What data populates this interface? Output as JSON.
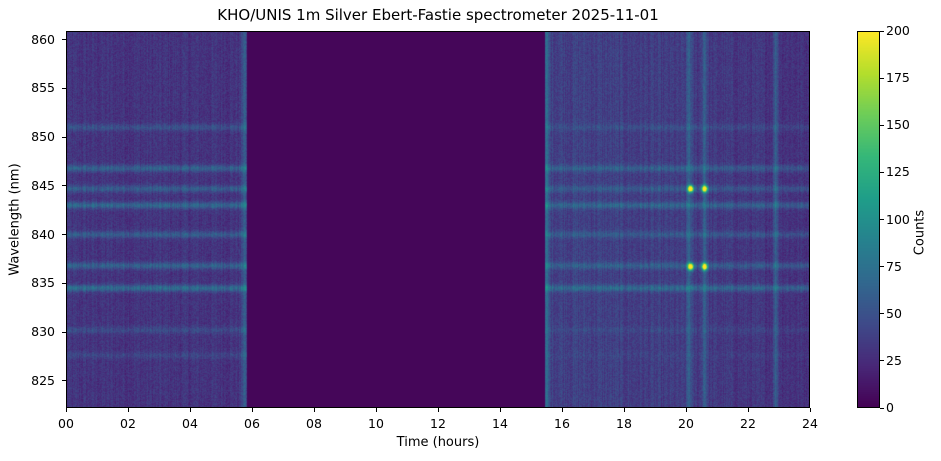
{
  "chart_data": {
    "type": "heatmap",
    "title": "KHO/UNIS 1m Silver Ebert-Fastie spectrometer 2025-11-01",
    "xlabel": "Time (hours)",
    "ylabel": "Wavelength (nm)",
    "colorbar_label": "Counts",
    "colormap": "viridis",
    "xlim": [
      0,
      24
    ],
    "ylim": [
      822.2,
      860.9
    ],
    "clim": [
      0,
      200
    ],
    "x_ticks": [
      0,
      2,
      4,
      6,
      8,
      10,
      12,
      14,
      16,
      18,
      20,
      22,
      24
    ],
    "x_tick_labels": [
      "00",
      "02",
      "04",
      "06",
      "08",
      "10",
      "12",
      "14",
      "16",
      "18",
      "20",
      "22",
      "24"
    ],
    "y_ticks": [
      825,
      830,
      835,
      840,
      845,
      850,
      855,
      860
    ],
    "y_tick_labels": [
      "825",
      "830",
      "835",
      "840",
      "845",
      "850",
      "855",
      "860"
    ],
    "c_ticks": [
      0,
      25,
      50,
      75,
      100,
      125,
      150,
      175,
      200
    ],
    "c_tick_labels": [
      "0",
      "25",
      "50",
      "75",
      "100",
      "125",
      "150",
      "175",
      "200"
    ],
    "no_data_interval_hours": [
      5.85,
      15.45
    ],
    "background_counts": {
      "before_gap": 30,
      "after_gap": 40
    },
    "emission_bands_nm": [
      {
        "wavelength": 851.0,
        "counts": 55
      },
      {
        "wavelength": 846.8,
        "counts": 70
      },
      {
        "wavelength": 844.7,
        "counts": 65
      },
      {
        "wavelength": 843.0,
        "counts": 75
      },
      {
        "wavelength": 840.0,
        "counts": 65
      },
      {
        "wavelength": 836.8,
        "counts": 70
      },
      {
        "wavelength": 834.5,
        "counts": 80
      },
      {
        "wavelength": 830.2,
        "counts": 50
      },
      {
        "wavelength": 827.6,
        "counts": 45
      }
    ],
    "bright_spots": [
      {
        "time": 20.15,
        "wavelength": 844.7,
        "counts": 200
      },
      {
        "time": 20.6,
        "wavelength": 844.7,
        "counts": 200
      },
      {
        "time": 20.15,
        "wavelength": 836.7,
        "counts": 200
      },
      {
        "time": 20.6,
        "wavelength": 836.7,
        "counts": 200
      }
    ],
    "bright_columns_hours": [
      5.75,
      15.5,
      20.1,
      20.6,
      22.9
    ]
  }
}
